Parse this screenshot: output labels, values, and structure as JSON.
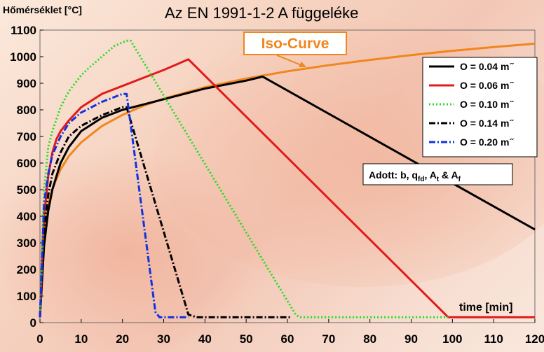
{
  "chart_data": {
    "type": "line",
    "title": "Az EN 1991-1-2 A függeléke",
    "ylabel": "Hőmérséklet [°C]",
    "xlabel": "time [min]",
    "xlim": [
      0,
      120
    ],
    "ylim": [
      0,
      1100
    ],
    "xticks": [
      0,
      10,
      20,
      30,
      40,
      50,
      60,
      70,
      80,
      90,
      100,
      110,
      120
    ],
    "yticks": [
      0,
      100,
      200,
      300,
      400,
      500,
      600,
      700,
      800,
      900,
      1000,
      1100
    ],
    "grid": false,
    "legend_position": "right",
    "annotation": {
      "iso_label": "Iso-Curve",
      "note_parts": [
        "Adott: b, q",
        "fd",
        ", A",
        "t",
        " & A",
        "f"
      ]
    },
    "series": [
      {
        "name": "O = 0.04 m ̋",
        "color": "#000000",
        "style": "solid",
        "x": [
          0,
          1,
          2,
          3,
          4,
          5,
          7,
          10,
          15,
          20,
          25,
          30,
          35,
          40,
          45,
          50,
          54,
          120
        ],
        "y": [
          20,
          290,
          420,
          500,
          550,
          600,
          660,
          720,
          770,
          800,
          820,
          840,
          860,
          880,
          895,
          910,
          925,
          350
        ]
      },
      {
        "name": "O = 0.06 m ̋",
        "color": "#e01b1b",
        "style": "solid",
        "x": [
          0,
          1,
          2,
          3,
          4,
          5,
          7,
          10,
          15,
          20,
          25,
          30,
          36,
          99,
          120
        ],
        "y": [
          20,
          400,
          550,
          640,
          690,
          720,
          760,
          810,
          860,
          890,
          920,
          950,
          990,
          20,
          20
        ]
      },
      {
        "name": "O = 0.10 m ̋",
        "color": "#22dd22",
        "style": "dotted",
        "x": [
          0,
          1,
          2,
          3,
          5,
          7,
          10,
          12,
          15,
          18,
          21,
          22,
          62,
          63,
          99
        ],
        "y": [
          20,
          500,
          660,
          720,
          810,
          870,
          930,
          960,
          1000,
          1040,
          1060,
          1060,
          30,
          20,
          20
        ]
      },
      {
        "name": "O = 0.14 m ̋",
        "color": "#000000",
        "style": "dashdot",
        "x": [
          0,
          1,
          2,
          3,
          5,
          7,
          10,
          15,
          20,
          21,
          36,
          38,
          61
        ],
        "y": [
          20,
          350,
          480,
          560,
          640,
          700,
          740,
          780,
          810,
          810,
          30,
          20,
          20
        ]
      },
      {
        "name": "O = 0.20 m ̋",
        "color": "#1133dd",
        "style": "dashdot",
        "x": [
          0,
          1,
          2,
          3,
          5,
          7,
          10,
          15,
          20,
          21,
          28,
          29,
          36
        ],
        "y": [
          20,
          450,
          560,
          630,
          700,
          750,
          790,
          830,
          860,
          860,
          40,
          20,
          20
        ]
      },
      {
        "name": "Iso-Curve",
        "color": "#f0861e",
        "style": "solid",
        "x": [
          0,
          1,
          2,
          3,
          5,
          7,
          10,
          15,
          20,
          25,
          30,
          40,
          50,
          60,
          70,
          80,
          90,
          100,
          110,
          120
        ],
        "y": [
          20,
          349,
          445,
          502,
          576,
          626,
          678,
          739,
          781,
          815,
          842,
          885,
          918,
          945,
          968,
          988,
          1006,
          1022,
          1036,
          1049
        ]
      }
    ]
  }
}
